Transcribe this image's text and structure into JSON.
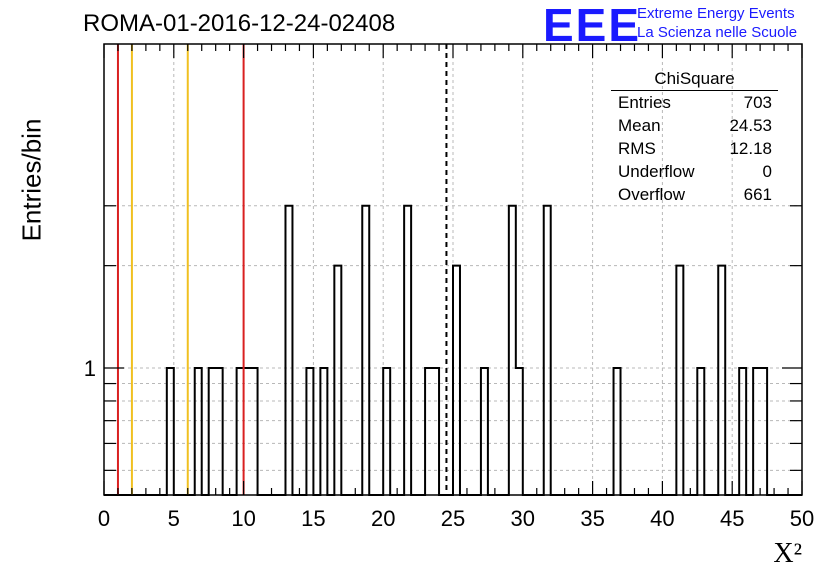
{
  "title": "ROMA-01-2016-12-24-02408",
  "logo": {
    "mark": "EEE",
    "line1": "Extreme Energy Events",
    "line2": "La Scienza nelle Scuole",
    "color": "#1a1aff"
  },
  "stats": {
    "name": "ChiSquare",
    "rows": [
      {
        "label": "Entries",
        "value": "703"
      },
      {
        "label": "Mean",
        "value": "24.53"
      },
      {
        "label": "RMS",
        "value": "12.18"
      },
      {
        "label": "Underflow",
        "value": "0"
      },
      {
        "label": "Overflow",
        "value": "661"
      }
    ]
  },
  "chart_data": {
    "type": "bar",
    "histogram": true,
    "title": "ROMA-01-2016-12-24-02408",
    "xlabel": "X²",
    "ylabel": "Entries/bin",
    "xlim": [
      0,
      50
    ],
    "ylog": true,
    "bin_width": 0.5,
    "x_tick_labels": [
      "0",
      "5",
      "10",
      "15",
      "20",
      "25",
      "30",
      "35",
      "40",
      "45",
      "50"
    ],
    "y_tick_labels": [
      "1"
    ],
    "bins": [
      {
        "x": 4.5,
        "value": 1
      },
      {
        "x": 6.5,
        "value": 1
      },
      {
        "x": 7.5,
        "value": 1
      },
      {
        "x": 8.0,
        "value": 1
      },
      {
        "x": 9.5,
        "value": 1
      },
      {
        "x": 10.0,
        "value": 1
      },
      {
        "x": 10.5,
        "value": 1
      },
      {
        "x": 13.0,
        "value": 3
      },
      {
        "x": 14.5,
        "value": 1
      },
      {
        "x": 15.5,
        "value": 1
      },
      {
        "x": 16.5,
        "value": 2
      },
      {
        "x": 18.5,
        "value": 3
      },
      {
        "x": 20.0,
        "value": 1
      },
      {
        "x": 21.5,
        "value": 3
      },
      {
        "x": 23.0,
        "value": 1
      },
      {
        "x": 23.5,
        "value": 1
      },
      {
        "x": 25.0,
        "value": 2
      },
      {
        "x": 27.0,
        "value": 1
      },
      {
        "x": 29.0,
        "value": 3
      },
      {
        "x": 29.5,
        "value": 1
      },
      {
        "x": 31.5,
        "value": 3
      },
      {
        "x": 36.5,
        "value": 1
      },
      {
        "x": 41.0,
        "value": 2
      },
      {
        "x": 42.5,
        "value": 1
      },
      {
        "x": 44.0,
        "value": 2
      },
      {
        "x": 45.5,
        "value": 1
      },
      {
        "x": 46.5,
        "value": 1
      },
      {
        "x": 47.0,
        "value": 1
      }
    ],
    "reference_lines": [
      {
        "x": 1,
        "color": "#d92020",
        "style": "solid"
      },
      {
        "x": 2,
        "color": "#f0c020",
        "style": "solid"
      },
      {
        "x": 6,
        "color": "#f0c020",
        "style": "solid"
      },
      {
        "x": 10,
        "color": "#d92020",
        "style": "solid"
      },
      {
        "x": 24.53,
        "color": "#000000",
        "style": "dashed"
      }
    ],
    "grid": true
  }
}
